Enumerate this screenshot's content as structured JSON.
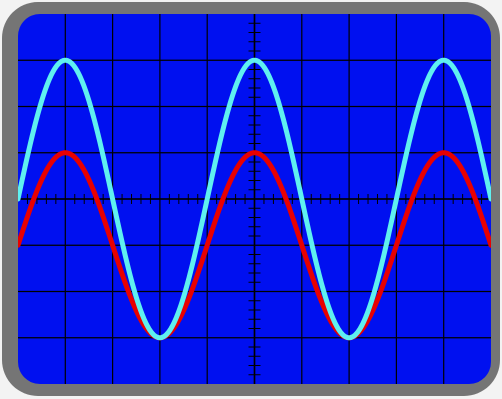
{
  "colors": {
    "page_background": "#f3f3f3",
    "bezel": "#757575",
    "screen": "#0010f0",
    "grid": "#000000",
    "trace_1": "#5ff0f0",
    "trace_2": "#e80000"
  },
  "chart_data": {
    "type": "line",
    "title": "",
    "xlabel": "",
    "ylabel": "",
    "grid": true,
    "divisions": {
      "x": 10,
      "y": 8
    },
    "minor_ticks_per_division": 5,
    "xlim": [
      0,
      10
    ],
    "ylim": [
      -4,
      4
    ],
    "series": [
      {
        "color": "#5ff0f0",
        "amplitude": 3,
        "offset": 0,
        "period": 4,
        "peak_x": 1,
        "description_free": true
      },
      {
        "color": "#e80000",
        "amplitude": 2,
        "offset": -1,
        "period": 4,
        "peak_x": 1
      }
    ]
  }
}
